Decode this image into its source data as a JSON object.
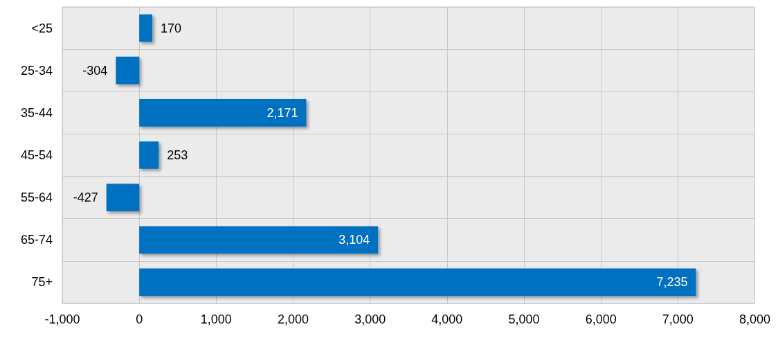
{
  "chart_data": {
    "type": "bar",
    "orientation": "horizontal",
    "categories": [
      "<25",
      "25-34",
      "35-44",
      "45-54",
      "55-64",
      "65-74",
      "75+"
    ],
    "values": [
      170,
      -304,
      2171,
      253,
      -427,
      3104,
      7235
    ],
    "value_labels": [
      "170",
      "-304",
      "2,171",
      "253",
      "-427",
      "3,104",
      "7,235"
    ],
    "color": "#0070c0",
    "xlim": [
      -1000,
      8000
    ],
    "xticks": [
      {
        "value": -1000,
        "label": "-1,000"
      },
      0,
      {
        "value": 1000,
        "label": "1,000"
      },
      {
        "value": 2000,
        "label": "2,000"
      },
      {
        "value": 3000,
        "label": "3,000"
      },
      {
        "value": 4000,
        "label": "4,000"
      },
      {
        "value": 5000,
        "label": "5,000"
      },
      {
        "value": 6000,
        "label": "6,000"
      },
      {
        "value": 7000,
        "label": "7,000"
      },
      {
        "value": 8000,
        "label": "8,000"
      }
    ],
    "grid": true
  }
}
